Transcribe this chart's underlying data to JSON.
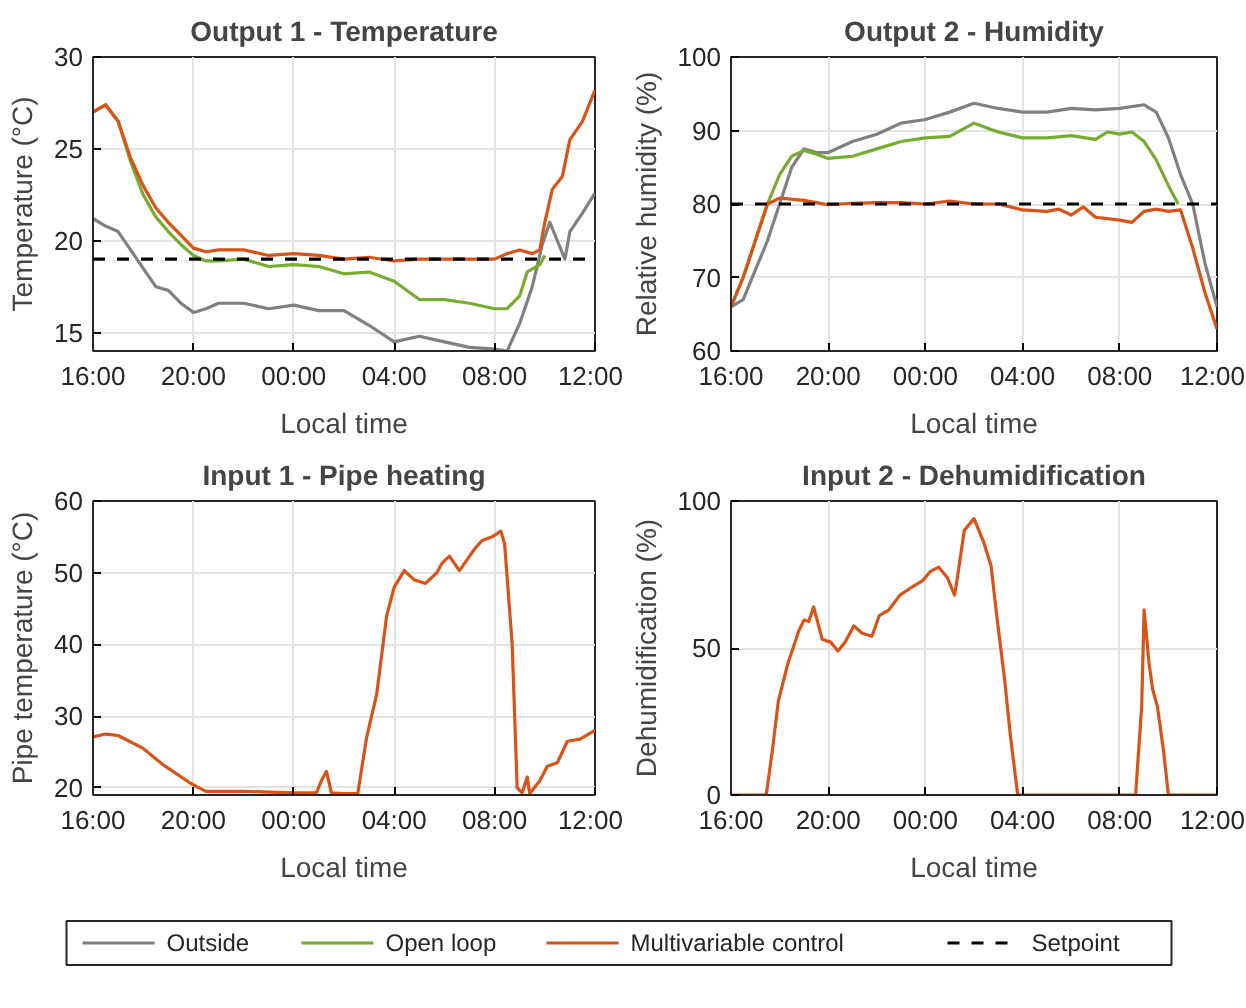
{
  "chart_data": [
    {
      "type": "line",
      "title": "Output 1 - Temperature",
      "xlabel": "Local time",
      "ylabel": "Temperature (°C)",
      "xlim": [
        "2000-01-01T16:00",
        "2000-01-02T12:00"
      ],
      "xticks": [
        {
          "value": "2000-01-01T16:00",
          "label": "16:00"
        },
        {
          "value": "2000-01-01T20:00",
          "label": "20:00"
        },
        {
          "value": "2000-01-02T00:00",
          "label": "00:00"
        },
        {
          "value": "2000-01-02T04:00",
          "label": "04:00"
        },
        {
          "value": "2000-01-02T08:00",
          "label": "08:00"
        },
        {
          "value": "2000-01-02T12:00",
          "label": "12:00"
        }
      ],
      "ylim": [
        14,
        30
      ],
      "yticks": [
        15,
        20,
        25,
        30
      ],
      "grid": true,
      "legend": "bottom",
      "ref_lines": [
        {
          "axis": "y",
          "value": 19,
          "label": "Setpoint",
          "color": "#000000",
          "line_style": "dashed"
        }
      ],
      "series": [
        {
          "name": "Outside",
          "color": "#808080",
          "x": [
            "2000-01-01T16:00",
            "2000-01-01T16:30",
            "2000-01-01T17:00",
            "2000-01-01T17:30",
            "2000-01-01T18:00",
            "2000-01-01T18:30",
            "2000-01-01T19:00",
            "2000-01-01T19:30",
            "2000-01-01T20:00",
            "2000-01-01T20:30",
            "2000-01-01T21:00",
            "2000-01-01T22:00",
            "2000-01-01T23:00",
            "2000-01-02T00:00",
            "2000-01-02T01:00",
            "2000-01-02T02:00",
            "2000-01-02T03:00",
            "2000-01-02T04:00",
            "2000-01-02T05:00",
            "2000-01-02T06:00",
            "2000-01-02T07:00",
            "2000-01-02T08:00",
            "2000-01-02T08:30",
            "2000-01-02T09:00",
            "2000-01-02T09:30",
            "2000-01-02T09:54",
            "2000-01-02T10:12",
            "2000-01-02T10:30",
            "2000-01-02T10:48",
            "2000-01-02T11:00",
            "2000-01-02T11:30",
            "2000-01-02T12:00"
          ],
          "values": [
            21.2,
            20.8,
            20.5,
            19.5,
            18.5,
            17.5,
            17.3,
            16.6,
            16.1,
            16.3,
            16.6,
            16.6,
            16.3,
            16.5,
            16.2,
            16.2,
            15.4,
            14.5,
            14.8,
            14.5,
            14.2,
            14.1,
            14,
            15.5,
            17.5,
            19.8,
            21,
            20,
            19,
            20.5,
            21.5,
            22.6
          ]
        },
        {
          "name": "Open loop",
          "color": "#77ac30",
          "x": [
            "2000-01-01T16:00",
            "2000-01-01T16:30",
            "2000-01-01T17:00",
            "2000-01-01T17:30",
            "2000-01-01T18:00",
            "2000-01-01T18:30",
            "2000-01-01T19:00",
            "2000-01-01T19:30",
            "2000-01-01T20:00",
            "2000-01-01T20:30",
            "2000-01-01T21:00",
            "2000-01-01T22:00",
            "2000-01-01T23:00",
            "2000-01-02T00:00",
            "2000-01-02T01:00",
            "2000-01-02T02:00",
            "2000-01-02T03:00",
            "2000-01-02T04:00",
            "2000-01-02T05:00",
            "2000-01-02T06:00",
            "2000-01-02T07:00",
            "2000-01-02T08:00",
            "2000-01-02T08:30",
            "2000-01-02T09:00",
            "2000-01-02T09:18",
            "2000-01-02T09:48",
            "2000-01-02T10:00"
          ],
          "values": [
            27,
            27.4,
            26.5,
            24.3,
            22.5,
            21.3,
            20.5,
            19.8,
            19.2,
            18.9,
            18.9,
            19,
            18.6,
            18.7,
            18.6,
            18.2,
            18.3,
            17.8,
            16.8,
            16.8,
            16.6,
            16.3,
            16.3,
            17,
            18.3,
            18.7,
            19.2
          ]
        },
        {
          "name": "Multivariable control",
          "color": "#d95319",
          "x": [
            "2000-01-01T16:00",
            "2000-01-01T16:30",
            "2000-01-01T17:00",
            "2000-01-01T17:30",
            "2000-01-01T18:00",
            "2000-01-01T18:30",
            "2000-01-01T19:00",
            "2000-01-01T19:30",
            "2000-01-01T20:00",
            "2000-01-01T20:30",
            "2000-01-01T21:00",
            "2000-01-01T22:00",
            "2000-01-01T23:00",
            "2000-01-02T00:00",
            "2000-01-02T01:00",
            "2000-01-02T02:00",
            "2000-01-02T03:00",
            "2000-01-02T04:00",
            "2000-01-02T05:00",
            "2000-01-02T06:00",
            "2000-01-02T07:00",
            "2000-01-02T08:00",
            "2000-01-02T08:30",
            "2000-01-02T09:00",
            "2000-01-02T09:30",
            "2000-01-02T09:48",
            "2000-01-02T10:00",
            "2000-01-02T10:18",
            "2000-01-02T10:42",
            "2000-01-02T11:00",
            "2000-01-02T11:30",
            "2000-01-02T12:00"
          ],
          "values": [
            27,
            27.4,
            26.5,
            24.5,
            23,
            21.8,
            21,
            20.3,
            19.6,
            19.4,
            19.5,
            19.5,
            19.2,
            19.3,
            19.2,
            19,
            19.1,
            18.9,
            19,
            19,
            19,
            19,
            19.3,
            19.5,
            19.3,
            19.5,
            21,
            22.8,
            23.5,
            25.5,
            26.5,
            28.2
          ]
        }
      ]
    },
    {
      "type": "line",
      "title": "Output 2 - Humidity",
      "xlabel": "Local time",
      "ylabel": "Relative humidity (%)",
      "xlim": [
        "2000-01-01T16:00",
        "2000-01-02T12:00"
      ],
      "xticks": [
        {
          "value": "2000-01-01T16:00",
          "label": "16:00"
        },
        {
          "value": "2000-01-01T20:00",
          "label": "20:00"
        },
        {
          "value": "2000-01-02T00:00",
          "label": "00:00"
        },
        {
          "value": "2000-01-02T04:00",
          "label": "04:00"
        },
        {
          "value": "2000-01-02T08:00",
          "label": "08:00"
        },
        {
          "value": "2000-01-02T12:00",
          "label": "12:00"
        }
      ],
      "ylim": [
        60,
        100
      ],
      "yticks": [
        60,
        70,
        80,
        90,
        100
      ],
      "grid": true,
      "ref_lines": [
        {
          "axis": "y",
          "value": 80,
          "color": "#000000",
          "line_style": "dashed"
        }
      ],
      "series": [
        {
          "color": "#808080",
          "x": [
            "2000-01-01T16:00",
            "2000-01-01T16:30",
            "2000-01-01T17:00",
            "2000-01-01T17:30",
            "2000-01-01T18:00",
            "2000-01-01T18:30",
            "2000-01-01T19:00",
            "2000-01-01T19:30",
            "2000-01-01T20:00",
            "2000-01-01T21:00",
            "2000-01-01T22:00",
            "2000-01-01T23:00",
            "2000-01-02T00:00",
            "2000-01-02T01:00",
            "2000-01-02T02:00",
            "2000-01-02T03:00",
            "2000-01-02T04:00",
            "2000-01-02T05:00",
            "2000-01-02T06:00",
            "2000-01-02T07:00",
            "2000-01-02T08:00",
            "2000-01-02T09:00",
            "2000-01-02T09:30",
            "2000-01-02T10:00",
            "2000-01-02T10:30",
            "2000-01-02T11:00",
            "2000-01-02T11:30",
            "2000-01-02T12:00"
          ],
          "values": [
            66,
            67,
            71,
            75,
            80,
            85,
            87.5,
            87,
            87,
            88.5,
            89.5,
            91,
            91.5,
            92.5,
            93.7,
            93,
            92.5,
            92.5,
            93,
            92.8,
            93,
            93.5,
            92.5,
            89,
            84,
            80,
            72,
            66
          ]
        },
        {
          "color": "#77ac30",
          "x": [
            "2000-01-01T16:00",
            "2000-01-01T16:30",
            "2000-01-01T17:00",
            "2000-01-01T17:30",
            "2000-01-01T18:00",
            "2000-01-01T18:30",
            "2000-01-01T19:00",
            "2000-01-01T19:30",
            "2000-01-01T20:00",
            "2000-01-01T21:00",
            "2000-01-01T22:00",
            "2000-01-01T23:00",
            "2000-01-02T00:00",
            "2000-01-02T01:00",
            "2000-01-02T02:00",
            "2000-01-02T03:00",
            "2000-01-02T04:00",
            "2000-01-02T05:00",
            "2000-01-02T06:00",
            "2000-01-02T07:00",
            "2000-01-02T07:30",
            "2000-01-02T08:00",
            "2000-01-02T08:30",
            "2000-01-02T09:00",
            "2000-01-02T09:30",
            "2000-01-02T10:00",
            "2000-01-02T10:24"
          ],
          "values": [
            66,
            70,
            75,
            80,
            84,
            86.5,
            87.3,
            86.8,
            86.2,
            86.5,
            87.5,
            88.5,
            89,
            89.2,
            91,
            89.8,
            89,
            89,
            89.3,
            88.8,
            89.8,
            89.5,
            89.8,
            88.5,
            86,
            82.5,
            80
          ]
        },
        {
          "color": "#d95319",
          "x": [
            "2000-01-01T16:00",
            "2000-01-01T16:30",
            "2000-01-01T17:00",
            "2000-01-01T17:30",
            "2000-01-01T18:00",
            "2000-01-01T19:00",
            "2000-01-01T20:00",
            "2000-01-01T21:00",
            "2000-01-01T22:00",
            "2000-01-01T23:00",
            "2000-01-02T00:00",
            "2000-01-02T01:00",
            "2000-01-02T02:00",
            "2000-01-02T03:00",
            "2000-01-02T04:00",
            "2000-01-02T05:00",
            "2000-01-02T05:30",
            "2000-01-02T06:00",
            "2000-01-02T06:30",
            "2000-01-02T07:00",
            "2000-01-02T08:00",
            "2000-01-02T08:30",
            "2000-01-02T09:00",
            "2000-01-02T09:30",
            "2000-01-02T10:00",
            "2000-01-02T10:30",
            "2000-01-02T11:00",
            "2000-01-02T11:30",
            "2000-01-02T12:00"
          ],
          "values": [
            66,
            70,
            75,
            80,
            80.8,
            80.5,
            79.9,
            80.1,
            80.2,
            80.2,
            80,
            80.4,
            80,
            80,
            79.2,
            79,
            79.3,
            78.5,
            79.6,
            78.2,
            77.8,
            77.5,
            79,
            79.3,
            79,
            79.2,
            74,
            68,
            63
          ]
        }
      ]
    },
    {
      "type": "line",
      "title": "Input 1 - Pipe heating",
      "xlabel": "Local time",
      "ylabel": "Pipe temperature (°C)",
      "xlim": [
        "2000-01-01T16:00",
        "2000-01-02T12:00"
      ],
      "xticks": [
        {
          "value": "2000-01-01T16:00",
          "label": "16:00"
        },
        {
          "value": "2000-01-01T20:00",
          "label": "20:00"
        },
        {
          "value": "2000-01-02T00:00",
          "label": "00:00"
        },
        {
          "value": "2000-01-02T04:00",
          "label": "04:00"
        },
        {
          "value": "2000-01-02T08:00",
          "label": "08:00"
        },
        {
          "value": "2000-01-02T12:00",
          "label": "12:00"
        }
      ],
      "ylim": [
        19,
        60
      ],
      "yticks": [
        20,
        30,
        40,
        50,
        60
      ],
      "grid": true,
      "series": [
        {
          "color": "#d95319",
          "x": [
            "2000-01-01T16:00",
            "2000-01-01T16:30",
            "2000-01-01T17:00",
            "2000-01-01T18:00",
            "2000-01-01T18:48",
            "2000-01-01T19:54",
            "2000-01-01T20:30",
            "2000-01-01T22:00",
            "2000-01-02T00:00",
            "2000-01-02T00:54",
            "2000-01-02T01:06",
            "2000-01-02T01:18",
            "2000-01-02T01:30",
            "2000-01-02T02:00",
            "2000-01-02T02:33",
            "2000-01-02T02:54",
            "2000-01-02T03:18",
            "2000-01-02T03:42",
            "2000-01-02T04:00",
            "2000-01-02T04:24",
            "2000-01-02T04:48",
            "2000-01-02T05:15",
            "2000-01-02T05:42",
            "2000-01-02T05:54",
            "2000-01-02T06:12",
            "2000-01-02T06:36",
            "2000-01-02T07:12",
            "2000-01-02T07:30",
            "2000-01-02T07:54",
            "2000-01-02T08:15",
            "2000-01-02T08:24",
            "2000-01-02T08:42",
            "2000-01-02T08:54",
            "2000-01-02T09:06",
            "2000-01-02T09:18",
            "2000-01-02T09:24",
            "2000-01-02T09:48",
            "2000-01-02T10:06",
            "2000-01-02T10:30",
            "2000-01-02T10:54",
            "2000-01-02T11:24",
            "2000-01-02T12:00"
          ],
          "values": [
            27.1,
            27.5,
            27.3,
            25.5,
            23.2,
            20.6,
            19.5,
            19.5,
            19.3,
            19.3,
            21,
            22.3,
            19.3,
            19.2,
            19.2,
            27,
            33,
            44,
            48,
            50.3,
            49,
            48.5,
            50,
            51.3,
            52.3,
            50.3,
            53.3,
            54.5,
            55,
            55.8,
            54,
            40,
            20,
            19.3,
            21.5,
            19.2,
            21,
            23,
            23.5,
            26.5,
            26.8,
            28
          ]
        }
      ]
    },
    {
      "type": "line",
      "title": "Input 2 - Dehumidification",
      "xlabel": "Local time",
      "ylabel": "Dehumidification (%)",
      "xlim": [
        "2000-01-01T16:00",
        "2000-01-02T12:00"
      ],
      "xticks": [
        {
          "value": "2000-01-01T16:00",
          "label": "16:00"
        },
        {
          "value": "2000-01-01T20:00",
          "label": "20:00"
        },
        {
          "value": "2000-01-02T00:00",
          "label": "00:00"
        },
        {
          "value": "2000-01-02T04:00",
          "label": "04:00"
        },
        {
          "value": "2000-01-02T08:00",
          "label": "08:00"
        },
        {
          "value": "2000-01-02T12:00",
          "label": "12:00"
        }
      ],
      "ylim": [
        0,
        100
      ],
      "yticks": [
        0,
        50,
        100
      ],
      "grid": true,
      "series": [
        {
          "color": "#d95319",
          "x": [
            "2000-01-01T16:00",
            "2000-01-01T17:27",
            "2000-01-01T17:42",
            "2000-01-01T17:57",
            "2000-01-01T18:21",
            "2000-01-01T18:48",
            "2000-01-01T19:00",
            "2000-01-01T19:12",
            "2000-01-01T19:24",
            "2000-01-01T19:45",
            "2000-01-01T20:06",
            "2000-01-01T20:24",
            "2000-01-01T20:42",
            "2000-01-01T21:03",
            "2000-01-01T21:24",
            "2000-01-01T21:48",
            "2000-01-01T22:06",
            "2000-01-01T22:30",
            "2000-01-01T22:57",
            "2000-01-01T23:30",
            "2000-01-01T23:54",
            "2000-01-02T00:12",
            "2000-01-02T00:33",
            "2000-01-02T00:54",
            "2000-01-02T01:12",
            "2000-01-02T01:18",
            "2000-01-02T01:36",
            "2000-01-02T02:00",
            "2000-01-02T02:24",
            "2000-01-02T02:42",
            "2000-01-02T02:57",
            "2000-01-02T03:15",
            "2000-01-02T03:30",
            "2000-01-02T03:48",
            "2000-01-02T08:39",
            "2000-01-02T08:54",
            "2000-01-02T09:00",
            "2000-01-02T09:12",
            "2000-01-02T09:21",
            "2000-01-02T09:33",
            "2000-01-02T09:48",
            "2000-01-02T10:00",
            "2000-01-02T12:00"
          ],
          "values": [
            0,
            0,
            15,
            32,
            45,
            56,
            59.5,
            59,
            64,
            53,
            52,
            49,
            52,
            57.5,
            55,
            54,
            61,
            63,
            68,
            71,
            73,
            76,
            77.5,
            74,
            68,
            73,
            90,
            94,
            86,
            78,
            60,
            40,
            20,
            0,
            0,
            30,
            63,
            45,
            36,
            30,
            15,
            0,
            0
          ]
        }
      ]
    }
  ]
}
